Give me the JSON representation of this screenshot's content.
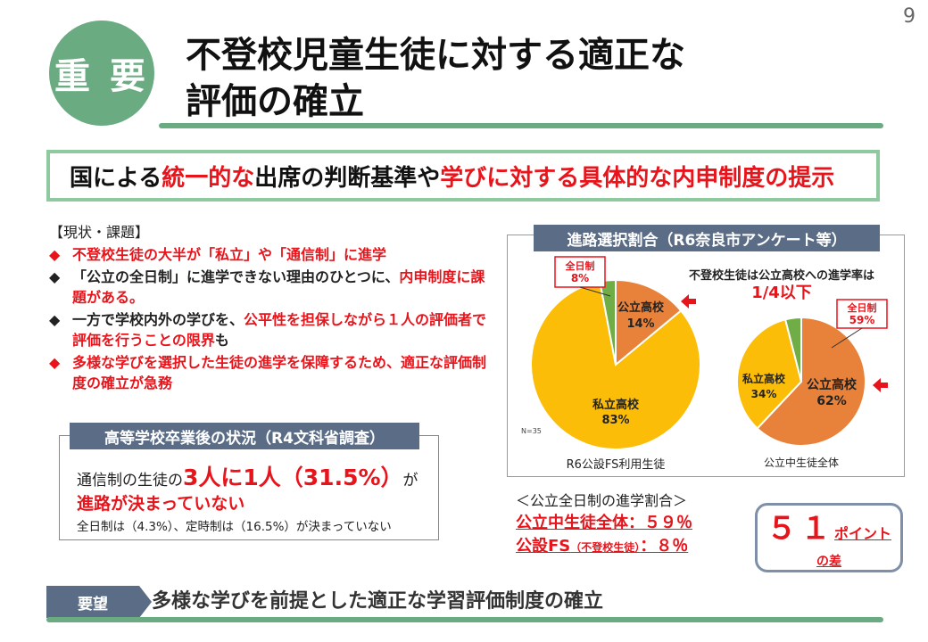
{
  "page_number": "9",
  "badge": "重 要",
  "title": {
    "line1": "不登校児童生徒に対する適正な",
    "line2": "評価の確立"
  },
  "banner": {
    "parts": [
      {
        "text": "国による",
        "red": false
      },
      {
        "text": "統一的な",
        "red": true
      },
      {
        "text": "出席の判断基準や",
        "red": false
      },
      {
        "text": "学びに対する具体的な内申制度の提示",
        "red": true
      }
    ]
  },
  "issues": {
    "heading": "【現状・課題】",
    "items": [
      {
        "bullet": "◆",
        "red_bullet": true,
        "segments": [
          {
            "text": "不登校生徒の大半が「私立」や「通信制」に進学",
            "red": true
          }
        ]
      },
      {
        "bullet": "◆",
        "red_bullet": false,
        "segments": [
          {
            "text": "「公立の全日制」に進学できない理由のひとつに、",
            "red": false
          },
          {
            "text": "内申制度に課題がある。",
            "red": true
          }
        ]
      },
      {
        "bullet": "◆",
        "red_bullet": false,
        "segments": [
          {
            "text": "一方で学校内外の学びを、",
            "red": false
          },
          {
            "text": "公平性を担保しながら１人の評価者で評価を行うことの限界",
            "red": true
          },
          {
            "text": "も",
            "red": false
          }
        ]
      },
      {
        "bullet": "◆",
        "red_bullet": true,
        "segments": [
          {
            "text": "多様な学びを選択した生徒の進学を保障するため、適正な評価制度の確立が急務",
            "red": true
          }
        ]
      }
    ]
  },
  "outcome": {
    "header": "高等学校卒業後の状況（R4文科省調査）",
    "line1_pre": "通信制の生徒の",
    "line1_big": "3人に1人（31.5%）",
    "line1_post": "が",
    "line2": "進路が決まっていない",
    "line3": "全日制は（4.3%）、定時制は（16.5%）が決まっていない"
  },
  "chart_panel": {
    "header": "進路選択割合（R6奈良市アンケート等）",
    "note_line1": "不登校生徒は公立高校への進学率は",
    "note_line2": "1/4以下",
    "n_label": "N=35"
  },
  "chart_data": [
    {
      "type": "pie",
      "title": "R6公設FS利用生徒",
      "slices": [
        {
          "label": "公立高校",
          "value": 14,
          "display": "14%",
          "color": "#e8823a"
        },
        {
          "label": "私立高校",
          "value": 83,
          "display": "83%",
          "color": "#fbbd08"
        },
        {
          "label": "全日制",
          "value": 3,
          "display": "",
          "color": "#70ad47"
        }
      ],
      "callout": {
        "label": "全日制",
        "value": "8%"
      }
    },
    {
      "type": "pie",
      "title": "公立中生徒全体",
      "slices": [
        {
          "label": "公立高校",
          "value": 62,
          "display": "62%",
          "color": "#e8823a"
        },
        {
          "label": "私立高校",
          "value": 34,
          "display": "34%",
          "color": "#fbbd08"
        },
        {
          "label": "",
          "value": 4,
          "display": "",
          "color": "#70ad47"
        }
      ],
      "callout": {
        "label": "全日制",
        "value": "59%"
      }
    }
  ],
  "rates": {
    "title": "＜公立全日制の進学割合＞",
    "line1": "公立中生徒全体：５９％",
    "line2_main": "公設FS",
    "line2_small": "（不登校生徒）",
    "line2_tail": "：８％"
  },
  "difference": {
    "big": "５１",
    "unit": "ポイント",
    "small": "の差"
  },
  "demand": {
    "tag": "要望",
    "text": "多様な学びを前提とした適正な学習評価制度の確立"
  },
  "colors": {
    "accent_green": "#6aab82",
    "header_slate": "#5b6d86",
    "emphasis_red": "#e8141b"
  }
}
